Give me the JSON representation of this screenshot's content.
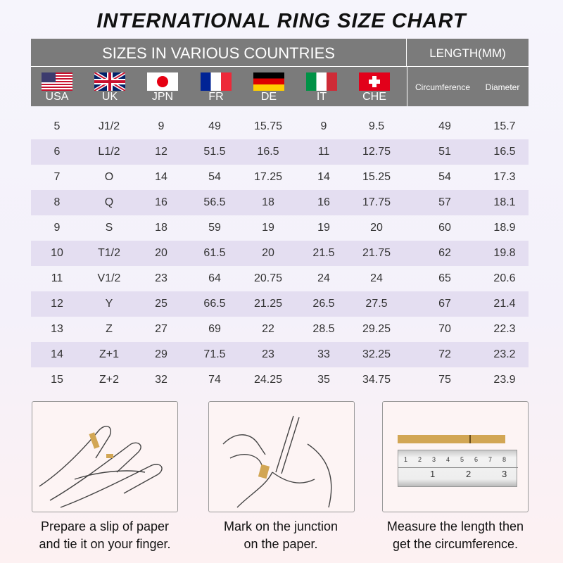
{
  "title": "INTERNATIONAL RING SIZE CHART",
  "header": {
    "countries_label": "SIZES IN VARIOUS COUNTRIES",
    "length_label": "LENGTH(MM)",
    "circumference": "Circumference",
    "diameter": "Diameter",
    "countries": [
      {
        "code": "USA",
        "flag": "usa-flag"
      },
      {
        "code": "UK",
        "flag": "uk-flag"
      },
      {
        "code": "JPN",
        "flag": "japan-flag"
      },
      {
        "code": "FR",
        "flag": "france-flag"
      },
      {
        "code": "DE",
        "flag": "germany-flag"
      },
      {
        "code": "IT",
        "flag": "italy-flag"
      },
      {
        "code": "CHE",
        "flag": "switzerland-flag"
      }
    ]
  },
  "rows": [
    [
      "5",
      "J1/2",
      "9",
      "49",
      "15.75",
      "9",
      "9.5",
      "49",
      "15.7"
    ],
    [
      "6",
      "L1/2",
      "12",
      "51.5",
      "16.5",
      "11",
      "12.75",
      "51",
      "16.5"
    ],
    [
      "7",
      "O",
      "14",
      "54",
      "17.25",
      "14",
      "15.25",
      "54",
      "17.3"
    ],
    [
      "8",
      "Q",
      "16",
      "56.5",
      "18",
      "16",
      "17.75",
      "57",
      "18.1"
    ],
    [
      "9",
      "S",
      "18",
      "59",
      "19",
      "19",
      "20",
      "60",
      "18.9"
    ],
    [
      "10",
      "T1/2",
      "20",
      "61.5",
      "20",
      "21.5",
      "21.75",
      "62",
      "19.8"
    ],
    [
      "11",
      "V1/2",
      "23",
      "64",
      "20.75",
      "24",
      "24",
      "65",
      "20.6"
    ],
    [
      "12",
      "Y",
      "25",
      "66.5",
      "21.25",
      "26.5",
      "27.5",
      "67",
      "21.4"
    ],
    [
      "13",
      "Z",
      "27",
      "69",
      "22",
      "28.5",
      "29.25",
      "70",
      "22.3"
    ],
    [
      "14",
      "Z+1",
      "29",
      "71.5",
      "23",
      "33",
      "32.25",
      "72",
      "23.2"
    ],
    [
      "15",
      "Z+2",
      "32",
      "74",
      "24.25",
      "35",
      "34.75",
      "75",
      "23.9"
    ]
  ],
  "colors": {
    "header": "#7b7b7b",
    "row_alt": "#e4def1",
    "paper": "#d2a654"
  },
  "steps": [
    {
      "line1": "Prepare a slip of paper",
      "line2": "and tie it on your finger."
    },
    {
      "line1": "Mark on the junction",
      "line2": "on the paper."
    },
    {
      "line1": "Measure the length then",
      "line2": "get the circumference."
    }
  ],
  "ruler": {
    "top_marks": [
      "1",
      "2",
      "3",
      "4",
      "5",
      "6",
      "7",
      "8"
    ],
    "bottom_marks": [
      "1",
      "2",
      "3"
    ]
  }
}
